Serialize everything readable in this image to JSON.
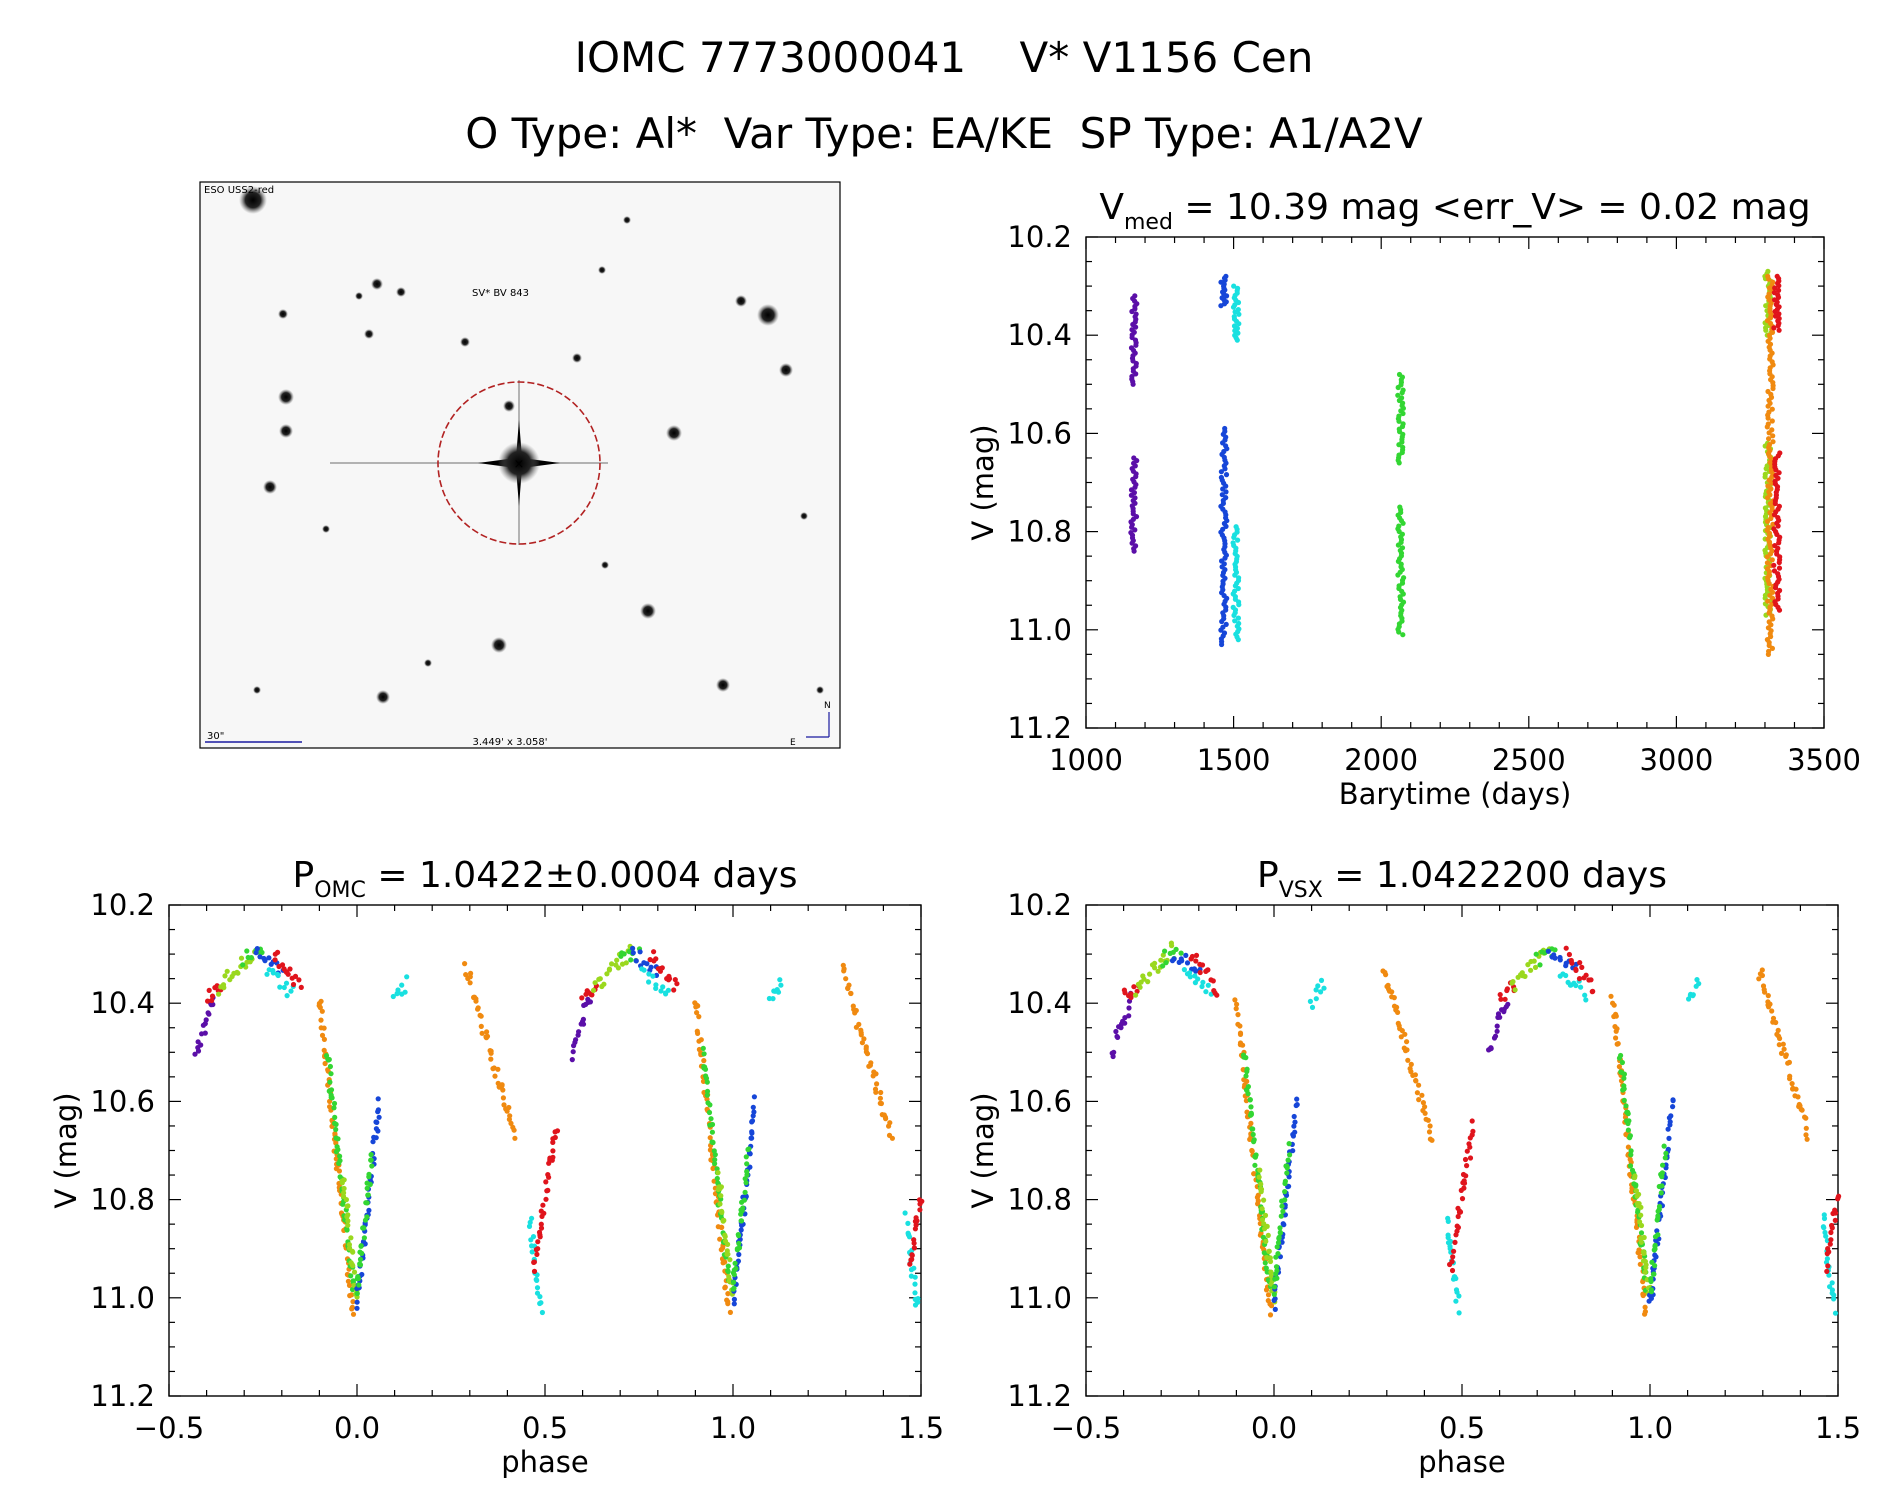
{
  "header": {
    "title_line1": "IOMC 7773000041    V* V1156 Cen",
    "title_line2": "O Type: Al*  Var Type: EA/KE  SP Type: A1/A2V"
  },
  "finder": {
    "survey_label": "ESO USS2-red",
    "target_label": "SV* BV 843",
    "scale_label": "30\"",
    "fov_label": "3.449' x 3.058'",
    "north_label": "N",
    "east_label": "E",
    "circle_color": "#b22222"
  },
  "colors": {
    "purple": "#5b0fa8",
    "blue": "#1646d8",
    "cyan": "#19e0e0",
    "green": "#33d633",
    "lime": "#9ad81e",
    "orange": "#f08a10",
    "red": "#e0141c"
  },
  "chart_data": [
    {
      "id": "lightcurve",
      "type": "scatter",
      "title_prefix": "V",
      "title_sub": "med",
      "title_rest": " = 10.39 mag <err_V> = 0.02 mag",
      "xlabel": "Barytime (days)",
      "ylabel": "V (mag)",
      "xlim": [
        1000,
        3500
      ],
      "ylim": [
        11.2,
        10.2
      ],
      "x_ticks": [
        "1000",
        "1500",
        "2000",
        "2500",
        "3000",
        "3500"
      ],
      "y_ticks": [
        "10.2",
        "10.4",
        "10.6",
        "10.8",
        "11.0",
        "11.2"
      ],
      "series": [
        {
          "color": "purple",
          "segments": [
            [
              1162,
              10.32,
              10.5
            ],
            [
              1162,
              10.65,
              10.84
            ]
          ]
        },
        {
          "color": "blue",
          "segments": [
            [
              1467,
              10.28,
              10.34
            ],
            [
              1467,
              10.59,
              11.03
            ]
          ]
        },
        {
          "color": "cyan",
          "segments": [
            [
              1508,
              10.3,
              10.41
            ],
            [
              1508,
              10.79,
              11.02
            ]
          ]
        },
        {
          "color": "green",
          "segments": [
            [
              2066,
              10.48,
              10.66
            ],
            [
              2066,
              10.75,
              11.01
            ]
          ]
        },
        {
          "color": "lime",
          "segments": [
            [
              3310,
              10.27,
              10.4
            ],
            [
              3310,
              10.62,
              10.97
            ]
          ]
        },
        {
          "color": "orange",
          "segments": [
            [
              3318,
              10.28,
              11.05
            ]
          ]
        },
        {
          "color": "red",
          "segments": [
            [
              3340,
              10.28,
              10.39
            ],
            [
              3340,
              10.64,
              10.96
            ]
          ]
        }
      ]
    },
    {
      "id": "phase_omc",
      "type": "scatter",
      "title_prefix": "P",
      "title_sub": "OMC",
      "title_rest": " = 1.0422±0.0004 days",
      "xlabel": "phase",
      "ylabel": "V (mag)",
      "xlim": [
        -0.5,
        1.5
      ],
      "ylim": [
        11.2,
        10.2
      ],
      "x_ticks": [
        "−0.5",
        "0.0",
        "0.5",
        "1.0",
        "1.5"
      ],
      "y_ticks": [
        "10.2",
        "10.4",
        "10.6",
        "10.8",
        "11.0",
        "11.2"
      ],
      "curve": [
        {
          "color": "purple",
          "phase": [
            -0.43,
            -0.38
          ],
          "mag": [
            10.5,
            10.39
          ]
        },
        {
          "color": "red",
          "phase": [
            -0.4,
            -0.36
          ],
          "mag": [
            10.39,
            10.36
          ]
        },
        {
          "color": "lime",
          "phase": [
            -0.37,
            -0.27
          ],
          "mag": [
            10.37,
            10.29
          ]
        },
        {
          "color": "green",
          "phase": [
            -0.3,
            -0.25
          ],
          "mag": [
            10.31,
            10.3
          ]
        },
        {
          "color": "blue",
          "phase": [
            -0.27,
            -0.2
          ],
          "mag": [
            10.3,
            10.33
          ]
        },
        {
          "color": "cyan",
          "phase": [
            -0.24,
            -0.17
          ],
          "mag": [
            10.34,
            10.38
          ]
        },
        {
          "color": "red",
          "phase": [
            -0.22,
            -0.15
          ],
          "mag": [
            10.3,
            10.37
          ]
        },
        {
          "color": "orange",
          "phase": [
            -0.1,
            -0.01
          ],
          "mag": [
            10.39,
            11.03
          ]
        },
        {
          "color": "green",
          "phase": [
            -0.08,
            -0.01
          ],
          "mag": [
            10.5,
            10.98
          ]
        },
        {
          "color": "lime",
          "phase": [
            -0.04,
            0.0
          ],
          "mag": [
            10.75,
            11.0
          ]
        },
        {
          "color": "blue",
          "phase": [
            0.0,
            0.06
          ],
          "mag": [
            11.01,
            10.6
          ]
        },
        {
          "color": "green",
          "phase": [
            0.0,
            0.04
          ],
          "mag": [
            10.99,
            10.7
          ]
        },
        {
          "color": "cyan",
          "phase": [
            0.1,
            0.13
          ],
          "mag": [
            10.4,
            10.36
          ]
        },
        {
          "color": "orange",
          "phase": [
            0.29,
            0.42
          ],
          "mag": [
            10.33,
            10.67
          ]
        },
        {
          "color": "cyan",
          "phase": [
            0.46,
            0.49
          ],
          "mag": [
            10.84,
            11.02
          ]
        },
        {
          "color": "red",
          "phase": [
            0.47,
            0.53
          ],
          "mag": [
            10.94,
            10.65
          ]
        }
      ]
    },
    {
      "id": "phase_vsx",
      "type": "scatter",
      "title_prefix": "P",
      "title_sub": "VSX",
      "title_rest": " = 1.0422200 days",
      "xlabel": "phase",
      "ylabel": "V (mag)",
      "xlim": [
        -0.5,
        1.5
      ],
      "ylim": [
        11.2,
        10.2
      ],
      "x_ticks": [
        "−0.5",
        "0.0",
        "0.5",
        "1.0",
        "1.5"
      ],
      "y_ticks": [
        "10.2",
        "10.4",
        "10.6",
        "10.8",
        "11.0",
        "11.2"
      ],
      "curve": "same as phase_omc"
    }
  ]
}
